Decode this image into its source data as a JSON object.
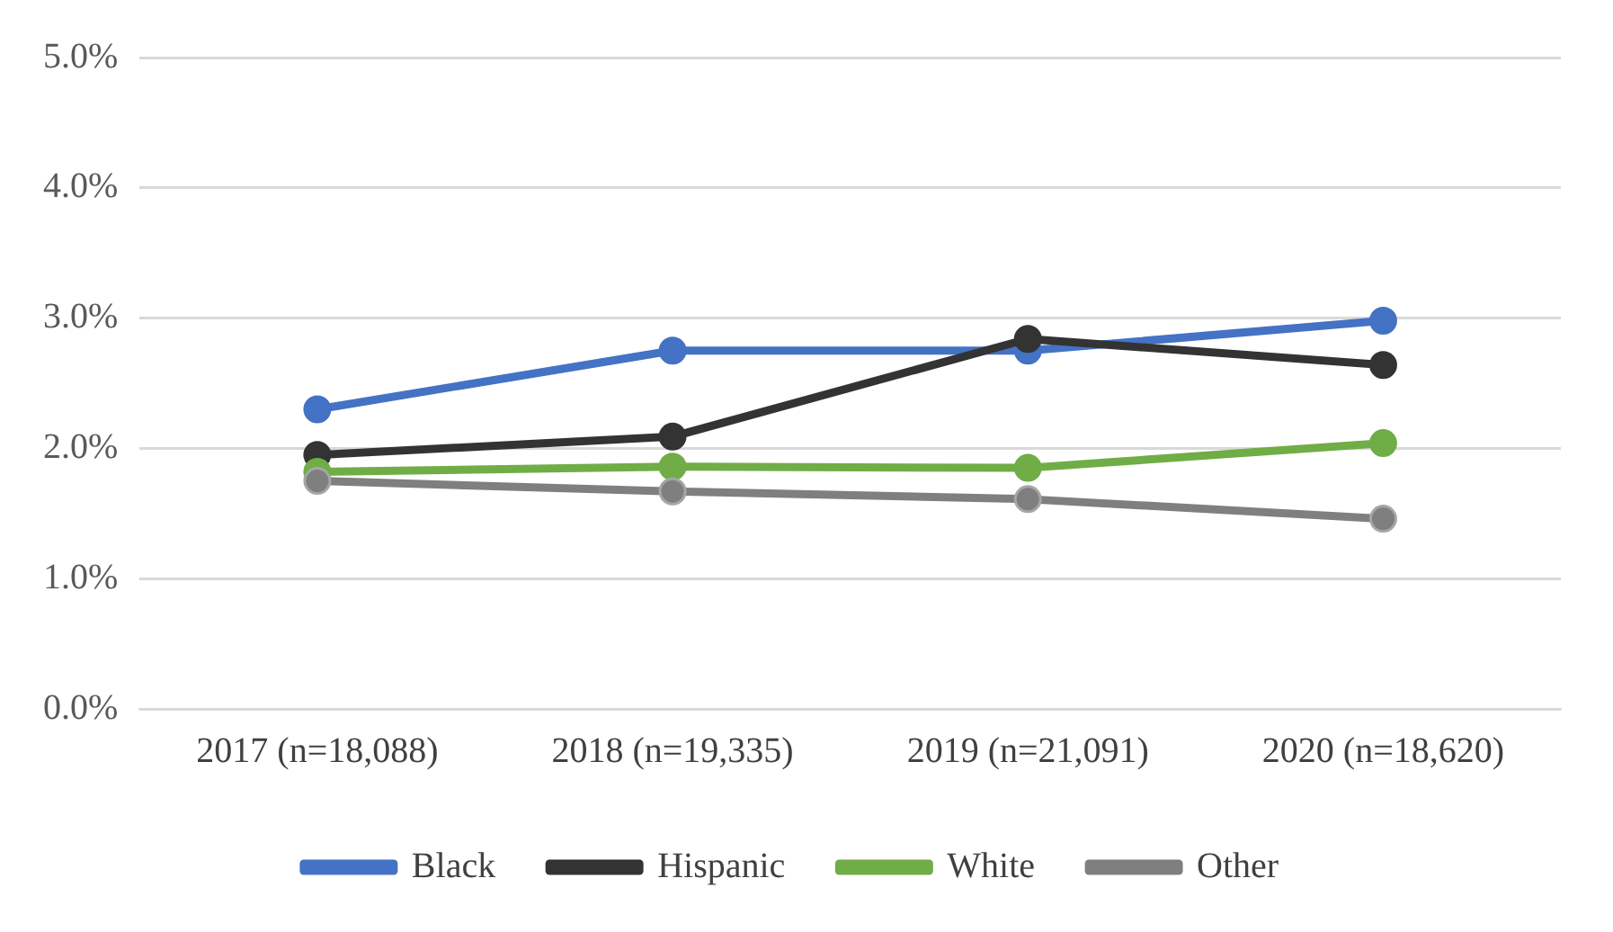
{
  "chart_data": {
    "type": "line",
    "categories": [
      "2017 (n=18,088)",
      "2018 (n=19,335)",
      "2019 (n=21,091)",
      "2020 (n=18,620)"
    ],
    "series": [
      {
        "name": "Black",
        "color": "#4472c4",
        "values": [
          2.3,
          2.75,
          2.75,
          2.98
        ]
      },
      {
        "name": "Hispanic",
        "color": "#333333",
        "values": [
          1.95,
          2.09,
          2.84,
          2.64
        ]
      },
      {
        "name": "White",
        "color": "#70ad47",
        "values": [
          1.82,
          1.86,
          1.85,
          2.04
        ]
      },
      {
        "name": "Other",
        "color": "#7f7f7f",
        "values": [
          1.75,
          1.67,
          1.61,
          1.46
        ]
      }
    ],
    "ylim": [
      0,
      5
    ],
    "yticks": [
      {
        "value": 0,
        "label": "0.0%"
      },
      {
        "value": 1,
        "label": "1.0%"
      },
      {
        "value": 2,
        "label": "2.0%"
      },
      {
        "value": 3,
        "label": "3.0%"
      },
      {
        "value": 4,
        "label": "4.0%"
      },
      {
        "value": 5,
        "label": "5.0%"
      }
    ],
    "grid": "y",
    "legend": "bottom",
    "marker": "circle",
    "line_style": "solid"
  }
}
